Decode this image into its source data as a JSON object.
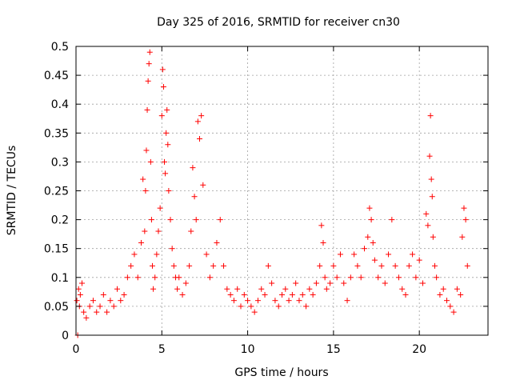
{
  "chart_data": {
    "type": "scatter",
    "title": "Day 325 of 2016, SRMTID for receiver cn30",
    "xlabel": "GPS time / hours",
    "ylabel": "SRMTID / TECUs",
    "xlim": [
      0,
      24
    ],
    "ylim": [
      0,
      0.5
    ],
    "xticks": [
      0,
      5,
      10,
      15,
      20
    ],
    "xtick_labels": [
      "0",
      "5",
      "10",
      "15",
      "20"
    ],
    "yticks": [
      0,
      0.05,
      0.1,
      0.15,
      0.2,
      0.25,
      0.3,
      0.35,
      0.4,
      0.45,
      0.5
    ],
    "ytick_labels": [
      "0",
      "0.05",
      "0.1",
      "0.15",
      "0.2",
      "0.25",
      "0.3",
      "0.35",
      "0.4",
      "0.45",
      "0.5"
    ],
    "grid": true,
    "marker": "+",
    "series": [
      {
        "name": "SRMTID",
        "color": "#ff0000",
        "x": [
          0.05,
          0.1,
          0.15,
          0.2,
          0.25,
          0.35,
          0.45,
          0.6,
          0.8,
          1.0,
          1.2,
          1.4,
          1.6,
          1.8,
          2.0,
          2.2,
          2.4,
          2.6,
          2.8,
          3.0,
          3.2,
          3.4,
          3.6,
          3.8,
          3.9,
          4.0,
          4.05,
          4.1,
          4.15,
          4.2,
          4.25,
          4.3,
          4.35,
          4.4,
          4.45,
          4.5,
          4.6,
          4.7,
          4.8,
          4.9,
          5.0,
          5.05,
          5.1,
          5.15,
          5.2,
          5.25,
          5.3,
          5.35,
          5.4,
          5.5,
          5.6,
          5.7,
          5.8,
          5.9,
          6.0,
          6.2,
          6.4,
          6.6,
          6.7,
          6.8,
          6.9,
          7.0,
          7.1,
          7.2,
          7.3,
          7.4,
          7.6,
          7.8,
          8.0,
          8.2,
          8.4,
          8.6,
          8.8,
          9.0,
          9.2,
          9.4,
          9.6,
          9.8,
          10.0,
          10.2,
          10.4,
          10.6,
          10.8,
          11.0,
          11.2,
          11.4,
          11.6,
          11.8,
          12.0,
          12.2,
          12.4,
          12.6,
          12.8,
          13.0,
          13.2,
          13.4,
          13.6,
          13.8,
          14.0,
          14.2,
          14.3,
          14.4,
          14.5,
          14.6,
          14.8,
          15.0,
          15.2,
          15.4,
          15.6,
          15.8,
          16.0,
          16.2,
          16.4,
          16.6,
          16.8,
          17.0,
          17.1,
          17.2,
          17.3,
          17.4,
          17.6,
          17.8,
          18.0,
          18.2,
          18.4,
          18.6,
          18.8,
          19.0,
          19.2,
          19.4,
          19.6,
          19.8,
          20.0,
          20.2,
          20.4,
          20.5,
          20.6,
          20.65,
          20.7,
          20.75,
          20.8,
          20.9,
          21.0,
          21.2,
          21.4,
          21.6,
          21.8,
          22.0,
          22.2,
          22.4,
          22.5,
          22.6,
          22.7,
          22.8
        ],
        "y": [
          0.06,
          0.0,
          0.08,
          0.05,
          0.07,
          0.09,
          0.04,
          0.03,
          0.05,
          0.06,
          0.04,
          0.05,
          0.07,
          0.04,
          0.06,
          0.05,
          0.08,
          0.06,
          0.07,
          0.1,
          0.12,
          0.14,
          0.1,
          0.16,
          0.27,
          0.18,
          0.25,
          0.32,
          0.39,
          0.44,
          0.47,
          0.49,
          0.3,
          0.2,
          0.12,
          0.08,
          0.1,
          0.14,
          0.18,
          0.22,
          0.38,
          0.46,
          0.43,
          0.3,
          0.28,
          0.35,
          0.39,
          0.33,
          0.25,
          0.2,
          0.15,
          0.12,
          0.1,
          0.08,
          0.1,
          0.07,
          0.09,
          0.12,
          0.18,
          0.29,
          0.24,
          0.2,
          0.37,
          0.34,
          0.38,
          0.26,
          0.14,
          0.1,
          0.12,
          0.16,
          0.2,
          0.12,
          0.08,
          0.07,
          0.06,
          0.08,
          0.05,
          0.07,
          0.06,
          0.05,
          0.04,
          0.06,
          0.08,
          0.07,
          0.12,
          0.09,
          0.06,
          0.05,
          0.07,
          0.08,
          0.06,
          0.07,
          0.09,
          0.06,
          0.07,
          0.05,
          0.08,
          0.07,
          0.09,
          0.12,
          0.19,
          0.16,
          0.1,
          0.08,
          0.09,
          0.12,
          0.1,
          0.14,
          0.09,
          0.06,
          0.1,
          0.14,
          0.12,
          0.1,
          0.15,
          0.17,
          0.22,
          0.2,
          0.16,
          0.13,
          0.1,
          0.12,
          0.09,
          0.14,
          0.2,
          0.12,
          0.1,
          0.08,
          0.07,
          0.12,
          0.14,
          0.1,
          0.13,
          0.09,
          0.21,
          0.19,
          0.31,
          0.38,
          0.27,
          0.24,
          0.17,
          0.12,
          0.1,
          0.07,
          0.08,
          0.06,
          0.05,
          0.04,
          0.08,
          0.07,
          0.17,
          0.22,
          0.2,
          0.12
        ]
      }
    ]
  }
}
